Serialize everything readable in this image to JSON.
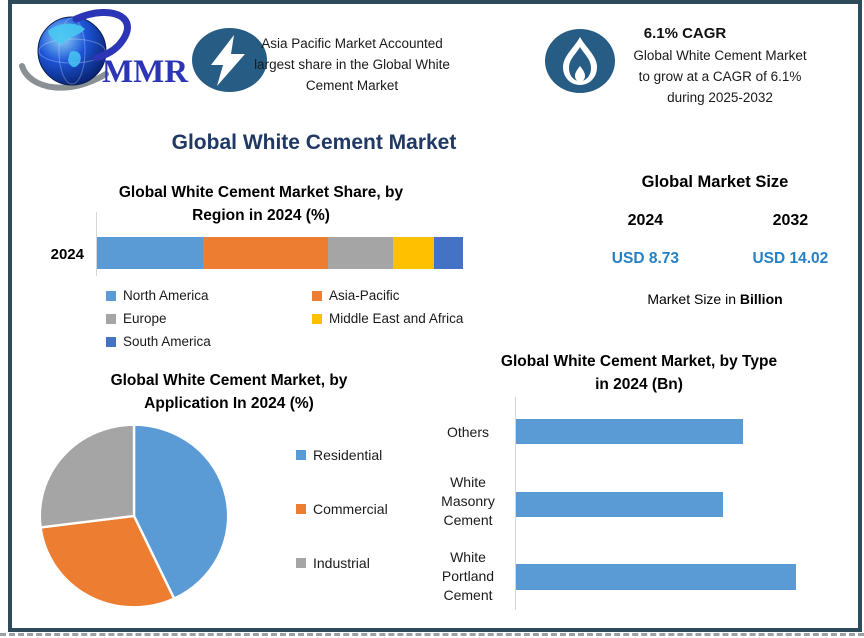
{
  "frame": {
    "border_color": "#2e4b59",
    "background": "#ffffff"
  },
  "logo": {
    "text": "MMR",
    "text_color": "#2b35b5",
    "globe_outer": "#041a60",
    "globe_mid": "#1d55d8",
    "globe_highlight": "#8fd6f7",
    "land_color": "#47c7f2",
    "swoosh_gray": "#8a9094",
    "swoosh_blue": "#2b35b5"
  },
  "highlights": {
    "asia_pacific": {
      "icon": "lightning-icon",
      "icon_bg": "#275d84",
      "text": "Asia Pacific Market Accounted\nlargest share in the Global White\nCement Market"
    },
    "cagr": {
      "icon": "flame-icon",
      "icon_bg": "#275d84",
      "heading": "6.1% CAGR",
      "text": "Global White Cement Market\nto grow at a CAGR of 6.1%\nduring 2025-2032"
    }
  },
  "page_title": {
    "text": "Global White Cement Market",
    "color": "#1f3864"
  },
  "market_size": {
    "title": "Global Market Size",
    "years": [
      "2024",
      "2032"
    ],
    "values": [
      "USD 8.73",
      "USD 14.02"
    ],
    "value_color": "#2581c4",
    "footnote_prefix": "Market Size in ",
    "footnote_bold": "Billion"
  },
  "chart_data": [
    {
      "id": "region-share",
      "type": "bar",
      "variant": "stacked-horizontal",
      "title": "Global White Cement Market Share, by\nRegion in 2024 (%)",
      "categories": [
        "2024"
      ],
      "series": [
        {
          "name": "North America",
          "value": 29,
          "color": "#5B9BD5"
        },
        {
          "name": "Asia-Pacific",
          "value": 34,
          "color": "#ED7D31"
        },
        {
          "name": "Europe",
          "value": 18,
          "color": "#A5A5A5"
        },
        {
          "name": "Middle East and Africa",
          "value": 11,
          "color": "#FFC000"
        },
        {
          "name": "South America",
          "value": 8,
          "color": "#4472C4"
        }
      ],
      "unit": "%",
      "xlim": [
        0,
        100
      ],
      "legend_position": "bottom",
      "grid": false,
      "value_labels_shown": false
    },
    {
      "id": "application-share",
      "type": "pie",
      "title": "Global White Cement Market, by\nApplication In 2024 (%)",
      "slices": [
        {
          "name": "Residential",
          "value": 43,
          "color": "#5B9BD5"
        },
        {
          "name": "Commercial",
          "value": 30,
          "color": "#ED7D31"
        },
        {
          "name": "Industrial",
          "value": 27,
          "color": "#A5A5A5"
        }
      ],
      "unit": "%",
      "start_angle": "12-oclock",
      "direction": "clockwise",
      "legend_position": "right",
      "value_labels_shown": false
    },
    {
      "id": "type-market",
      "type": "bar",
      "variant": "horizontal",
      "title": "Global White Cement Market, by Type\nin 2024 (Bn)",
      "categories": [
        "Others",
        "White\nMasonry\nCement",
        "White\nPortland\nCement"
      ],
      "values_pct_of_max": [
        81,
        74,
        100
      ],
      "bar_color": "#5B9BD5",
      "unit": "Bn",
      "grid": false,
      "value_labels_shown": false,
      "axis_value_labels_shown": false
    }
  ]
}
